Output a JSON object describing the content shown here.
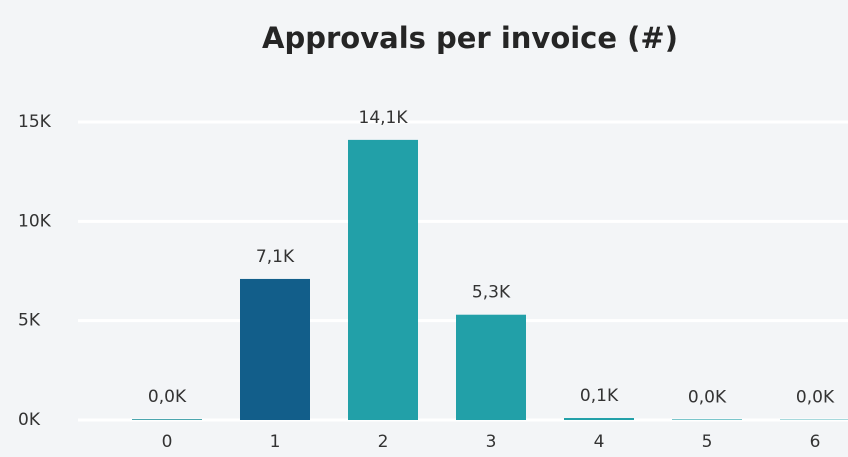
{
  "chart_data": {
    "type": "bar",
    "title": "Approvals per invoice (#)",
    "categories": [
      "0",
      "1",
      "2",
      "3",
      "4",
      "5",
      "6"
    ],
    "values": [
      40,
      7100,
      14100,
      5300,
      100,
      30,
      20
    ],
    "value_labels": [
      "0,0K",
      "7,1K",
      "14,1K",
      "5,3K",
      "0,1K",
      "0,0K",
      "0,0K"
    ],
    "colors": [
      "#1f8f9a",
      "#125e8a",
      "#22a0a8",
      "#22a0a8",
      "#22a0a8",
      "#22a0a8",
      "#22a0a8"
    ],
    "ylim": [
      0,
      15000
    ],
    "yticks": [
      {
        "value": 0,
        "label": "0K"
      },
      {
        "value": 5000,
        "label": "5K"
      },
      {
        "value": 10000,
        "label": "10K"
      },
      {
        "value": 15000,
        "label": "15K"
      }
    ],
    "grid": true
  }
}
